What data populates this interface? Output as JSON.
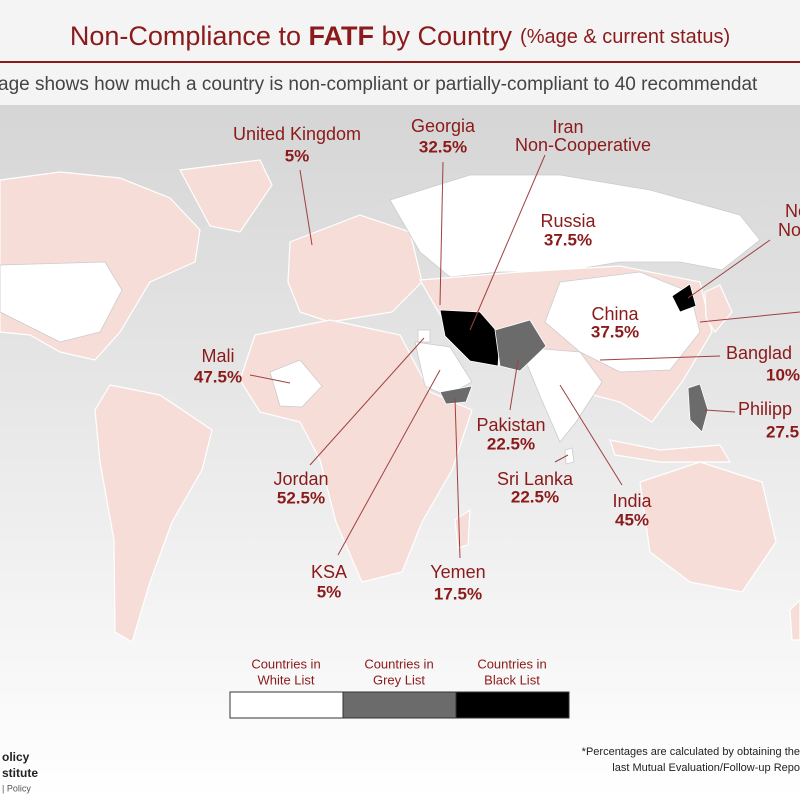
{
  "header": {
    "title_start": "Non-Compliance to ",
    "title_bold": "FATF",
    "title_end": " by Country",
    "title_note": "(%age & current status)",
    "subtitle": "age shows how much a country is non-compliant or partially-compliant to 40 recommendat"
  },
  "labels": [
    {
      "name": "United Kingdom",
      "value": "5%"
    },
    {
      "name": "Georgia",
      "value": "32.5%"
    },
    {
      "name": "Iran",
      "value": "Non-Cooperative"
    },
    {
      "name": "Russia",
      "value": "37.5%"
    },
    {
      "name": "China",
      "value": "37.5%"
    },
    {
      "name": "Mali",
      "value": "47.5%"
    },
    {
      "name": "Jordan",
      "value": "52.5%"
    },
    {
      "name": "KSA",
      "value": "5%"
    },
    {
      "name": "Yemen",
      "value": "17.5%"
    },
    {
      "name": "Pakistan",
      "value": "22.5%"
    },
    {
      "name": "Sri Lanka",
      "value": "22.5%"
    },
    {
      "name": "India",
      "value": "45%"
    },
    {
      "name": "Banglad",
      "value": "10%"
    },
    {
      "name": "Philipp",
      "value": "27.5"
    },
    {
      "name": "Ne",
      "value": "Nor"
    }
  ],
  "legend": [
    {
      "line1": "Countries in",
      "line2": "White List"
    },
    {
      "line1": "Countries in",
      "line2": "Grey List"
    },
    {
      "line1": "Countries in",
      "line2": "Black List"
    }
  ],
  "footer": {
    "note1": "*Percentages are calculated by obtaining the",
    "note2": "last Mutual Evaluation/Follow-up Repo",
    "logo1": "olicy",
    "logo2": "stitute",
    "logo3": "| Policy"
  }
}
